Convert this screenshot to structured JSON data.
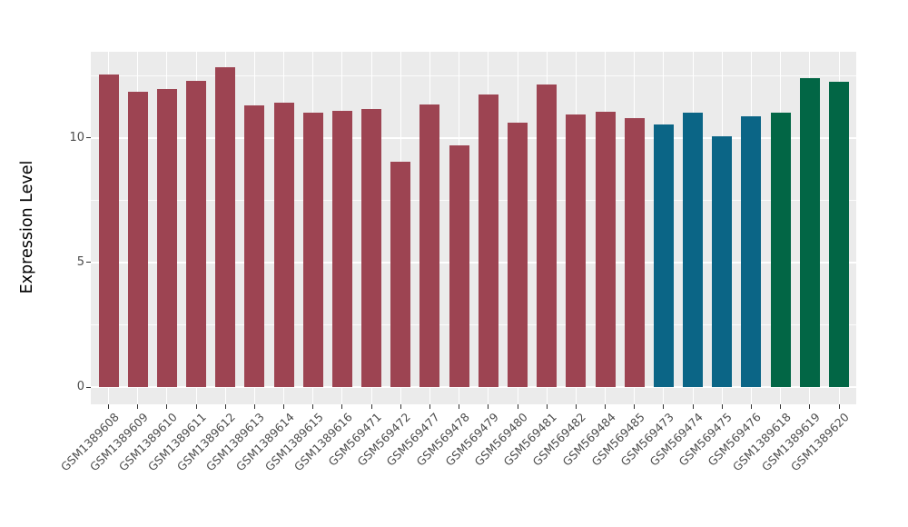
{
  "figure": {
    "ylabel": "Expression Level",
    "background_color": "#FFFFFF",
    "panel_background_color": "#EBEBEB",
    "gridline_color": "#FFFFFF",
    "axis_text_color": "#4D4D4D",
    "axis_title_color": "#000000"
  },
  "chart_data": {
    "type": "bar",
    "title": "",
    "xlabel": "",
    "ylabel": "Expression Level",
    "categories": [
      "GSM1389608",
      "GSM1389609",
      "GSM1389610",
      "GSM1389611",
      "GSM1389612",
      "GSM1389613",
      "GSM1389614",
      "GSM1389615",
      "GSM1389616",
      "GSM569471",
      "GSM569472",
      "GSM569477",
      "GSM569478",
      "GSM569479",
      "GSM569480",
      "GSM569481",
      "GSM569482",
      "GSM569484",
      "GSM569485",
      "GSM569473",
      "GSM569474",
      "GSM569475",
      "GSM569476",
      "GSM1389618",
      "GSM1389619",
      "GSM1389620"
    ],
    "values": [
      12.55,
      11.85,
      11.95,
      12.3,
      12.85,
      11.3,
      11.4,
      11.0,
      11.1,
      11.15,
      9.05,
      11.35,
      9.7,
      11.75,
      10.6,
      12.15,
      10.95,
      11.05,
      10.8,
      10.55,
      11.0,
      10.05,
      10.85,
      11.0,
      12.4,
      12.25
    ],
    "groups": [
      "red",
      "red",
      "red",
      "red",
      "red",
      "red",
      "red",
      "red",
      "red",
      "red",
      "red",
      "red",
      "red",
      "red",
      "red",
      "red",
      "red",
      "red",
      "red",
      "blue",
      "blue",
      "blue",
      "blue",
      "green",
      "green",
      "green"
    ],
    "palette": {
      "red": "#9D4452",
      "blue": "#0B6586",
      "green": "#026645"
    },
    "ylim": [
      0,
      13.5
    ],
    "yticks": [
      0,
      5,
      10
    ],
    "yticks_minor": [
      2.5,
      7.5,
      12.5
    ],
    "grid": true,
    "legend_position": "none",
    "x_label_rotation_deg": 45
  }
}
